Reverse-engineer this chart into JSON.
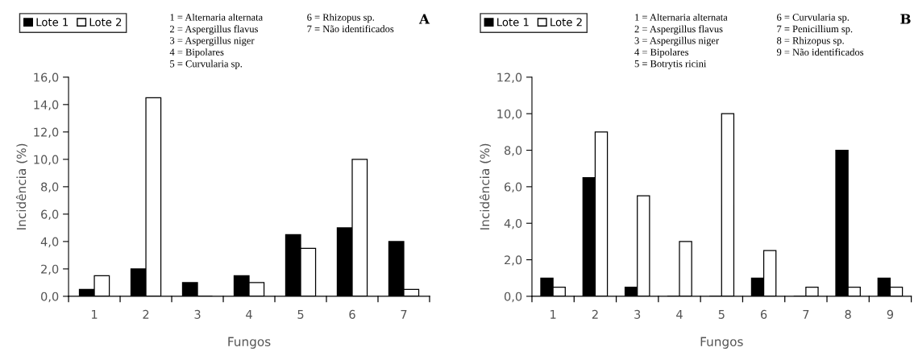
{
  "chart_data": [
    {
      "type": "bar",
      "title": "A",
      "xlabel": "Fungos",
      "ylabel": "Incidência (%)",
      "categories": [
        "1",
        "2",
        "3",
        "4",
        "5",
        "6",
        "7"
      ],
      "series": [
        {
          "name": "Lote 1",
          "color": "#000000",
          "values": [
            0.5,
            2,
            1,
            1.5,
            4.5,
            5,
            4
          ]
        },
        {
          "name": "Lote 2",
          "color": "#ffffff",
          "values": [
            1.5,
            14.5,
            0,
            1,
            3.5,
            10,
            0.5
          ]
        }
      ],
      "ylim": [
        0,
        16
      ],
      "yticks": [
        {
          "value": 0,
          "label": "0,0"
        },
        {
          "value": 2,
          "label": "2,0"
        },
        {
          "value": 4,
          "label": "4,0"
        },
        {
          "value": 6,
          "label": "6,0"
        },
        {
          "value": 8,
          "label": "8,0"
        },
        {
          "value": 10,
          "label": "10,0"
        },
        {
          "value": 12,
          "label": "12,0"
        },
        {
          "value": 14,
          "label": "14,0"
        },
        {
          "value": 16,
          "label": "16,0"
        }
      ],
      "legend": "top left",
      "grid": false,
      "annotations": [
        "1 = Alternaria alternata",
        "2 = Aspergillus flavus",
        "3 = Aspergillus niger",
        "4 = Bipolares",
        "5 = Curvularia sp.",
        "6 = Rhizopus sp.",
        "7 = Não identificados"
      ]
    },
    {
      "type": "bar",
      "title": "B",
      "xlabel": "Fungos",
      "ylabel": "Incidência (%)",
      "categories": [
        "1",
        "2",
        "3",
        "4",
        "5",
        "6",
        "7",
        "8",
        "9"
      ],
      "series": [
        {
          "name": "Lote 1",
          "color": "#000000",
          "values": [
            1,
            6.5,
            0.5,
            0,
            0,
            1,
            0,
            8,
            1
          ]
        },
        {
          "name": "Lote 2",
          "color": "#ffffff",
          "values": [
            0.5,
            9,
            5.5,
            3,
            10,
            2.5,
            0.5,
            0.5,
            0.5
          ]
        }
      ],
      "ylim": [
        0,
        12
      ],
      "yticks": [
        {
          "value": 0,
          "label": "0,0"
        },
        {
          "value": 2,
          "label": "2,0"
        },
        {
          "value": 4,
          "label": "4,0"
        },
        {
          "value": 6,
          "label": "6,0"
        },
        {
          "value": 8,
          "label": "8,0"
        },
        {
          "value": 10,
          "label": "10,0"
        },
        {
          "value": 12,
          "label": "12,0"
        }
      ],
      "legend": "top left",
      "grid": false,
      "annotations": [
        "1 = Alternaria alternata",
        "2 = Aspergillus flavus",
        "3 = Aspergillus niger",
        "4 = Bipolares",
        "5 = Botrytis ricini",
        "6 = Curvularia sp.",
        "7 = Penicillium sp.",
        "8 = Rhizopus sp.",
        "9 = Não identificados"
      ]
    }
  ]
}
